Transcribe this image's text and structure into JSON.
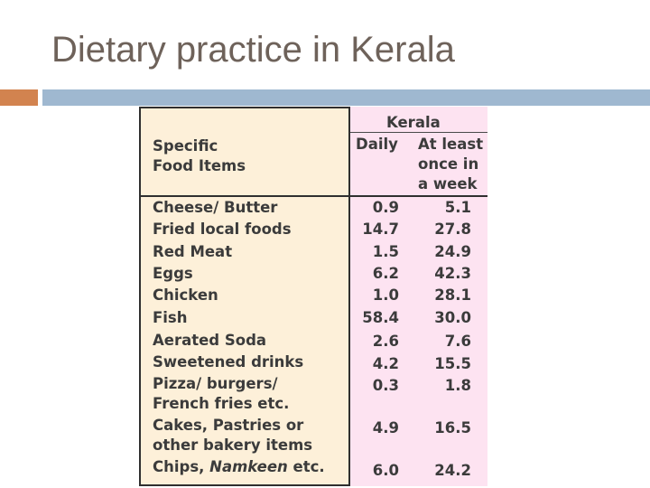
{
  "slide": {
    "title": "Dietary practice in Kerala"
  },
  "table": {
    "col_item_header": [
      "Specific",
      "Food Items"
    ],
    "region_header": "Kerala",
    "col_daily_header": "Daily",
    "col_week_header": [
      "At least",
      "once in",
      "a week"
    ],
    "rows": [
      {
        "item": "Cheese/ Butter",
        "daily": "0.9",
        "week": "5.1"
      },
      {
        "item": "Fried local foods",
        "daily": "14.7",
        "week": "27.8"
      },
      {
        "item": "Red Meat",
        "daily": "1.5",
        "week": "24.9"
      },
      {
        "item": "Eggs",
        "daily": "6.2",
        "week": "42.3"
      },
      {
        "item": "Chicken",
        "daily": "1.0",
        "week": "28.1"
      },
      {
        "item": "Fish",
        "daily": "58.4",
        "week": "30.0"
      },
      {
        "item": "Aerated Soda",
        "daily": "2.6",
        "week": "7.6"
      },
      {
        "item": "Sweetened drinks",
        "daily": "4.2",
        "week": "15.5"
      },
      {
        "item": "Pizza/ burgers/",
        "item2": "French fries etc.",
        "daily": "0.3",
        "week": "1.8"
      },
      {
        "item": "Cakes, Pastries or",
        "item2": "other bakery items",
        "daily": "4.9",
        "week": "16.5"
      },
      {
        "item": "Chips, ",
        "item_italic": "Namkeen",
        "item_tail": " etc.",
        "daily": "6.0",
        "week": "24.2"
      }
    ]
  }
}
